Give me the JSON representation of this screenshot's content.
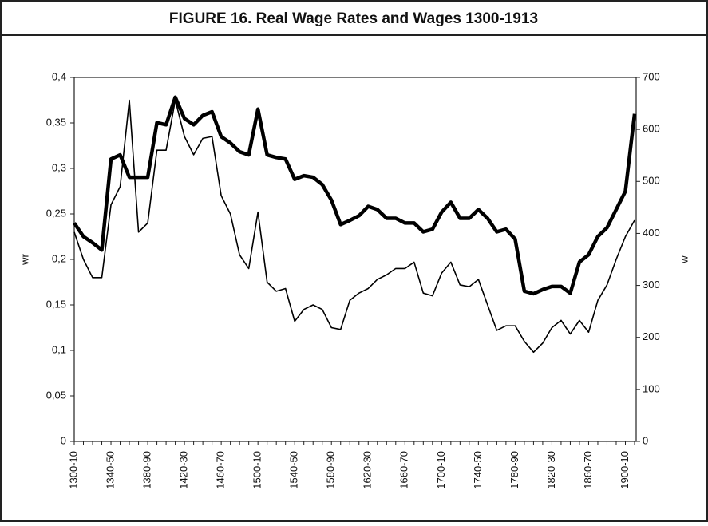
{
  "chart_data": {
    "type": "line",
    "title": "FIGURE 16. Real Wage Rates and Wages 1300-1913",
    "y_label": "wr",
    "y2_label": "w",
    "categories": [
      "1300-10",
      null,
      null,
      null,
      "1340-50",
      null,
      null,
      null,
      "1380-90",
      null,
      null,
      null,
      "1420-30",
      null,
      null,
      null,
      "1460-70",
      null,
      null,
      null,
      "1500-10",
      null,
      null,
      null,
      "1540-50",
      null,
      null,
      null,
      "1580-90",
      null,
      null,
      null,
      "1620-30",
      null,
      null,
      null,
      "1660-70",
      null,
      null,
      null,
      "1700-10",
      null,
      null,
      null,
      "1740-50",
      null,
      null,
      null,
      "1780-90",
      null,
      null,
      null,
      "1820-30",
      null,
      null,
      null,
      "1860-70",
      null,
      null,
      null,
      "1900-10",
      null
    ],
    "series": [
      {
        "color": "#000000",
        "axis": "y",
        "values": [
          0.23,
          0.2,
          0.18,
          0.18,
          0.26,
          0.28,
          0.375,
          0.23,
          0.24,
          0.32,
          0.32,
          0.375,
          0.335,
          0.315,
          0.333,
          0.335,
          0.27,
          0.25,
          0.205,
          0.19,
          0.252,
          0.175,
          0.165,
          0.168,
          0.132,
          0.145,
          0.15,
          0.145,
          0.125,
          0.123,
          0.155,
          0.163,
          0.168,
          0.178,
          0.183,
          0.19,
          0.19,
          0.197,
          0.163,
          0.16,
          0.185,
          0.197,
          0.172,
          0.17,
          0.178,
          0.15,
          0.122,
          0.127,
          0.127,
          0.11,
          0.098,
          0.108,
          0.125,
          0.133,
          0.118,
          0.133,
          0.12,
          0.155,
          0.172,
          0.2,
          0.225,
          0.243
        ]
      },
      {
        "color": "#000000",
        "axis": "y2",
        "values": [
          420,
          394,
          382,
          368,
          543,
          551,
          508,
          508,
          508,
          613,
          609,
          662,
          621,
          609,
          627,
          634,
          586,
          574,
          557,
          551,
          639,
          551,
          546,
          543,
          504,
          511,
          508,
          494,
          464,
          417,
          425,
          434,
          452,
          446,
          429,
          429,
          420,
          420,
          403,
          408,
          441,
          460,
          429,
          429,
          446,
          429,
          403,
          408,
          389,
          289,
          284,
          292,
          298,
          298,
          285,
          345,
          359,
          394,
          411,
          446,
          481,
          630
        ]
      }
    ],
    "ylim": [
      0,
      0.4
    ],
    "yticks": [
      0,
      {
        "value": 0.05,
        "label": "0,05"
      },
      {
        "value": 0.1,
        "label": "0,1"
      },
      {
        "value": 0.15,
        "label": "0,15"
      },
      {
        "value": 0.2,
        "label": "0,2"
      },
      {
        "value": 0.25,
        "label": "0,25"
      },
      {
        "value": 0.3,
        "label": "0,3"
      },
      {
        "value": 0.35,
        "label": "0,35"
      },
      {
        "value": 0.4,
        "label": "0,4"
      }
    ],
    "y2lim": [
      0,
      700
    ],
    "y2ticks": [
      0,
      100,
      200,
      300,
      400,
      500,
      600,
      700
    ]
  }
}
